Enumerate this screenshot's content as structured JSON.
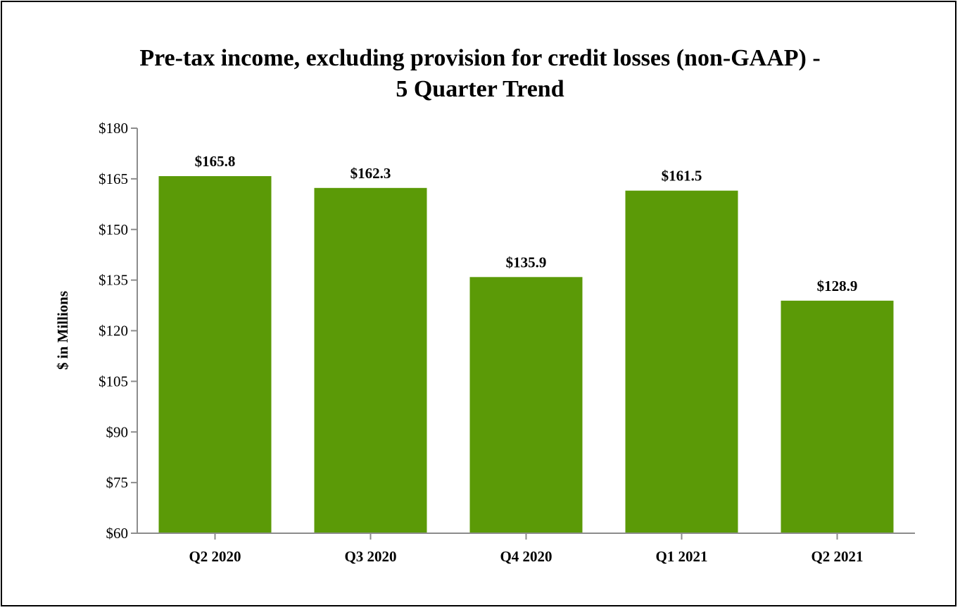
{
  "chart_data": {
    "type": "bar",
    "title_line1": "Pre-tax income, excluding provision for credit losses (non-GAAP) -",
    "title_line2": "5 Quarter Trend",
    "ylabel": "$ in Millions",
    "xlabel": "",
    "categories": [
      "Q2 2020",
      "Q3 2020",
      "Q4 2020",
      "Q1 2021",
      "Q2 2021"
    ],
    "values": [
      165.8,
      162.3,
      135.9,
      161.5,
      128.9
    ],
    "value_labels": [
      "$165.8",
      "$162.3",
      "$135.9",
      "$161.5",
      "$128.9"
    ],
    "ylim": [
      60,
      180
    ],
    "yticks": [
      60,
      75,
      90,
      105,
      120,
      135,
      150,
      165,
      180
    ],
    "ytick_labels": [
      "$60",
      "$75",
      "$90",
      "$105",
      "$120",
      "$135",
      "$150",
      "$165",
      "$180"
    ],
    "grid": false,
    "legend": "none",
    "bar_color": "#5b9a07",
    "axis_color": "#8c8c8c"
  }
}
